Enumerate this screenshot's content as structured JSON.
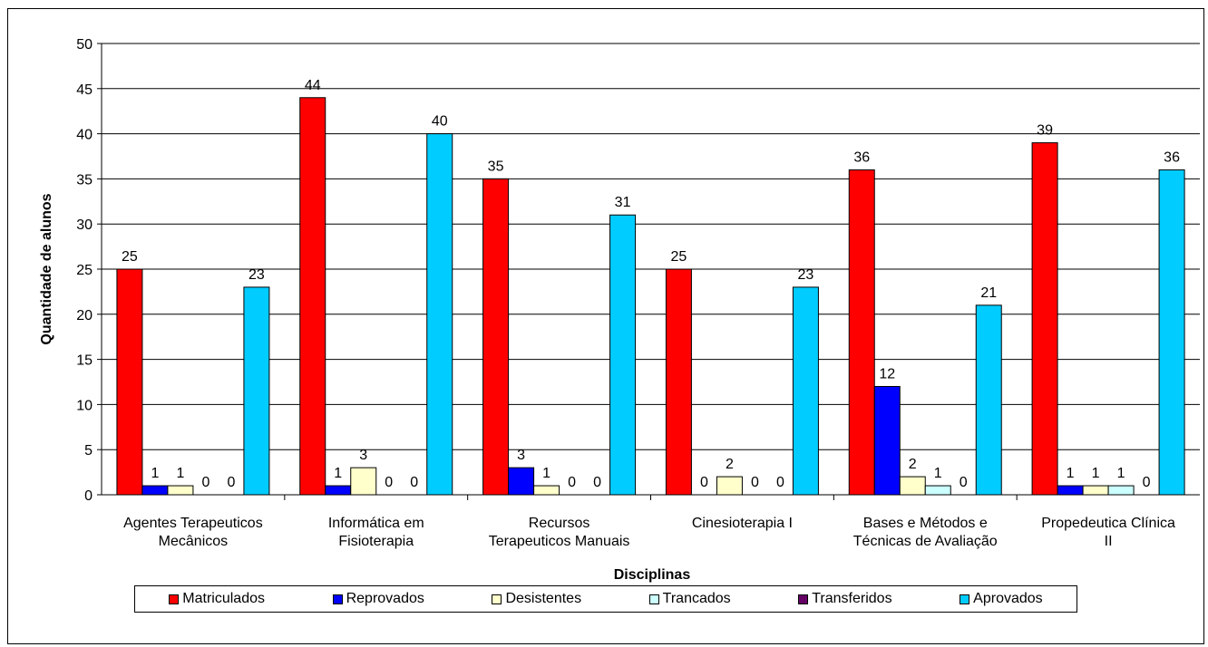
{
  "chart_data": {
    "type": "bar",
    "xlabel": "Disciplinas",
    "ylabel": "Quantidade de alunos",
    "ylim": [
      0,
      50
    ],
    "ytick_step": 5,
    "grid": true,
    "legend_position": "bottom",
    "categories": [
      [
        "Agentes Terapeuticos",
        "Mecânicos"
      ],
      [
        "Informática em",
        "Fisioterapia"
      ],
      [
        "Recursos",
        "Terapeuticos Manuais"
      ],
      [
        "Cinesioterapia I"
      ],
      [
        "Bases e Métodos e",
        "Técnicas de Avaliação"
      ],
      [
        "Propedeutica Clínica",
        "II"
      ]
    ],
    "series": [
      {
        "name": "Matriculados",
        "color": "#ff0000",
        "values": [
          25,
          44,
          35,
          25,
          36,
          39
        ]
      },
      {
        "name": "Reprovados",
        "color": "#0000ff",
        "values": [
          1,
          1,
          3,
          0,
          12,
          1
        ]
      },
      {
        "name": "Desistentes",
        "color": "#ffffcc",
        "values": [
          1,
          3,
          1,
          2,
          2,
          1
        ]
      },
      {
        "name": "Trancados",
        "color": "#ccffff",
        "values": [
          0,
          0,
          0,
          0,
          1,
          1
        ]
      },
      {
        "name": "Transferidos",
        "color": "#660066",
        "values": [
          0,
          0,
          0,
          0,
          0,
          0
        ]
      },
      {
        "name": "Aprovados",
        "color": "#00ccff",
        "values": [
          23,
          40,
          31,
          23,
          21,
          36
        ]
      }
    ]
  }
}
